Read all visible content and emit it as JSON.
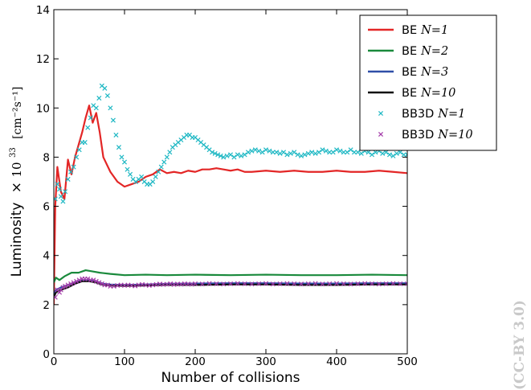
{
  "chart_data": {
    "type": "line",
    "title": "",
    "xlabel": "Number of collisions",
    "ylabel": "Luminosity",
    "ylabel_units": "[cm⁻²s⁻¹]",
    "xlim": [
      0,
      500
    ],
    "ylim": [
      0,
      14
    ],
    "xticks": [
      0,
      100,
      200,
      300,
      400,
      500
    ],
    "yticks": [
      0,
      2,
      4,
      6,
      8,
      10,
      12,
      14
    ],
    "grid": false,
    "legend_position": "top-right",
    "series": [
      {
        "name": "BE N=1",
        "label_text": "BE",
        "label_n": "N=1",
        "kind": "line",
        "color": "#e32626",
        "x": [
          0,
          2,
          5,
          10,
          15,
          20,
          25,
          30,
          35,
          40,
          45,
          50,
          55,
          60,
          65,
          70,
          80,
          90,
          100,
          110,
          120,
          130,
          140,
          150,
          160,
          170,
          180,
          190,
          200,
          210,
          220,
          230,
          240,
          250,
          260,
          270,
          280,
          300,
          320,
          340,
          360,
          380,
          400,
          420,
          440,
          460,
          480,
          500
        ],
        "y": [
          2.0,
          6.0,
          7.6,
          6.6,
          6.3,
          7.9,
          7.3,
          8.0,
          8.5,
          9.0,
          9.6,
          10.1,
          9.4,
          9.8,
          9.0,
          8.0,
          7.4,
          7.0,
          6.8,
          6.9,
          7.0,
          7.2,
          7.3,
          7.5,
          7.35,
          7.4,
          7.35,
          7.45,
          7.4,
          7.5,
          7.5,
          7.55,
          7.5,
          7.45,
          7.5,
          7.4,
          7.4,
          7.45,
          7.4,
          7.45,
          7.4,
          7.4,
          7.45,
          7.4,
          7.4,
          7.45,
          7.4,
          7.35
        ]
      },
      {
        "name": "BE N=2",
        "label_text": "BE",
        "label_n": "N=2",
        "kind": "line",
        "color": "#1a8a3c",
        "x": [
          0,
          3,
          8,
          15,
          25,
          35,
          45,
          55,
          65,
          80,
          100,
          130,
          160,
          200,
          250,
          300,
          350,
          400,
          450,
          500
        ],
        "y": [
          2.9,
          3.1,
          3.0,
          3.15,
          3.3,
          3.3,
          3.4,
          3.35,
          3.3,
          3.25,
          3.2,
          3.22,
          3.2,
          3.22,
          3.2,
          3.22,
          3.2,
          3.2,
          3.22,
          3.2
        ]
      },
      {
        "name": "BE N=3",
        "label_text": "BE",
        "label_n": "N=3",
        "kind": "line",
        "color": "#2f4ea8",
        "x": [
          0,
          3,
          10,
          20,
          30,
          40,
          50,
          60,
          70,
          80,
          100,
          130,
          160,
          200,
          250,
          300,
          350,
          400,
          450,
          500
        ],
        "y": [
          2.4,
          2.6,
          2.7,
          2.8,
          2.9,
          3.0,
          3.0,
          2.95,
          2.85,
          2.82,
          2.8,
          2.82,
          2.85,
          2.86,
          2.87,
          2.87,
          2.86,
          2.86,
          2.87,
          2.87
        ]
      },
      {
        "name": "BE N=10",
        "label_text": "BE",
        "label_n": "N=10",
        "kind": "line",
        "color": "#111111",
        "x": [
          0,
          3,
          10,
          20,
          30,
          40,
          50,
          60,
          70,
          80,
          100,
          130,
          160,
          200,
          250,
          300,
          350,
          400,
          450,
          500
        ],
        "y": [
          2.3,
          2.5,
          2.6,
          2.7,
          2.85,
          2.95,
          2.95,
          2.9,
          2.8,
          2.78,
          2.76,
          2.78,
          2.8,
          2.8,
          2.82,
          2.82,
          2.8,
          2.8,
          2.82,
          2.82
        ]
      },
      {
        "name": "BB3D N=1",
        "label_text": "BB3D",
        "label_n": "N=1",
        "kind": "scatter",
        "color": "#1fb8c4",
        "x": [
          2,
          5,
          8,
          10,
          13,
          16,
          20,
          24,
          28,
          32,
          36,
          40,
          44,
          48,
          52,
          56,
          60,
          64,
          68,
          72,
          76,
          80,
          84,
          88,
          92,
          96,
          100,
          104,
          108,
          112,
          116,
          120,
          124,
          128,
          132,
          136,
          140,
          144,
          148,
          152,
          156,
          160,
          164,
          168,
          172,
          176,
          180,
          184,
          188,
          192,
          196,
          200,
          204,
          208,
          212,
          216,
          220,
          224,
          228,
          232,
          236,
          240,
          245,
          250,
          255,
          260,
          265,
          270,
          275,
          280,
          285,
          290,
          295,
          300,
          305,
          310,
          315,
          320,
          325,
          330,
          335,
          340,
          345,
          350,
          355,
          360,
          365,
          370,
          375,
          380,
          385,
          390,
          395,
          400,
          405,
          410,
          415,
          420,
          425,
          430,
          435,
          440,
          445,
          450,
          455,
          460,
          465,
          470,
          475,
          480,
          485,
          490,
          495,
          500
        ],
        "y": [
          6.3,
          6.9,
          6.7,
          6.4,
          6.2,
          6.6,
          7.1,
          7.4,
          7.6,
          8.0,
          8.3,
          8.6,
          8.6,
          9.2,
          9.6,
          10.1,
          10.0,
          10.4,
          10.9,
          10.8,
          10.5,
          10.0,
          9.5,
          8.9,
          8.4,
          8.0,
          7.8,
          7.5,
          7.3,
          7.1,
          7.0,
          7.1,
          7.2,
          7.0,
          6.9,
          6.9,
          7.0,
          7.2,
          7.4,
          7.6,
          7.8,
          8.0,
          8.2,
          8.4,
          8.5,
          8.6,
          8.7,
          8.8,
          8.9,
          8.9,
          8.8,
          8.8,
          8.7,
          8.6,
          8.5,
          8.4,
          8.3,
          8.2,
          8.15,
          8.1,
          8.05,
          8.0,
          8.05,
          8.1,
          8.0,
          8.1,
          8.05,
          8.1,
          8.2,
          8.25,
          8.3,
          8.25,
          8.2,
          8.3,
          8.25,
          8.2,
          8.2,
          8.15,
          8.2,
          8.1,
          8.15,
          8.2,
          8.1,
          8.05,
          8.1,
          8.15,
          8.2,
          8.15,
          8.2,
          8.3,
          8.25,
          8.2,
          8.2,
          8.3,
          8.25,
          8.2,
          8.2,
          8.3,
          8.2,
          8.2,
          8.15,
          8.25,
          8.2,
          8.1,
          8.2,
          8.25,
          8.15,
          8.2,
          8.1,
          8.05,
          8.15,
          8.2,
          8.1,
          8.1
        ]
      },
      {
        "name": "BB3D N=10",
        "label_text": "BB3D",
        "label_n": "N=10",
        "kind": "scatter",
        "color": "#a33ba8",
        "x": [
          2,
          5,
          8,
          10,
          13,
          16,
          20,
          24,
          28,
          32,
          36,
          40,
          44,
          48,
          52,
          56,
          60,
          64,
          68,
          72,
          76,
          80,
          85,
          90,
          95,
          100,
          105,
          110,
          115,
          120,
          125,
          130,
          135,
          140,
          145,
          150,
          155,
          160,
          165,
          170,
          175,
          180,
          185,
          190,
          195,
          200,
          210,
          220,
          230,
          240,
          250,
          260,
          270,
          280,
          290,
          300,
          310,
          320,
          330,
          340,
          350,
          360,
          370,
          380,
          390,
          400,
          410,
          420,
          430,
          440,
          450,
          460,
          470,
          480,
          490,
          500
        ],
        "y": [
          2.3,
          2.6,
          2.5,
          2.6,
          2.7,
          2.75,
          2.8,
          2.85,
          2.9,
          2.95,
          3.0,
          3.05,
          3.05,
          3.05,
          3.0,
          3.0,
          2.95,
          2.9,
          2.85,
          2.8,
          2.8,
          2.75,
          2.75,
          2.78,
          2.8,
          2.78,
          2.8,
          2.78,
          2.76,
          2.8,
          2.82,
          2.8,
          2.78,
          2.8,
          2.82,
          2.84,
          2.82,
          2.83,
          2.85,
          2.82,
          2.84,
          2.83,
          2.85,
          2.84,
          2.83,
          2.85,
          2.84,
          2.86,
          2.85,
          2.84,
          2.85,
          2.86,
          2.85,
          2.84,
          2.85,
          2.86,
          2.84,
          2.85,
          2.86,
          2.85,
          2.84,
          2.85,
          2.86,
          2.84,
          2.85,
          2.86,
          2.85,
          2.84,
          2.85,
          2.86,
          2.85,
          2.84,
          2.85,
          2.86,
          2.85,
          2.85
        ]
      }
    ]
  },
  "watermark": "(CC-BY 3.0)"
}
